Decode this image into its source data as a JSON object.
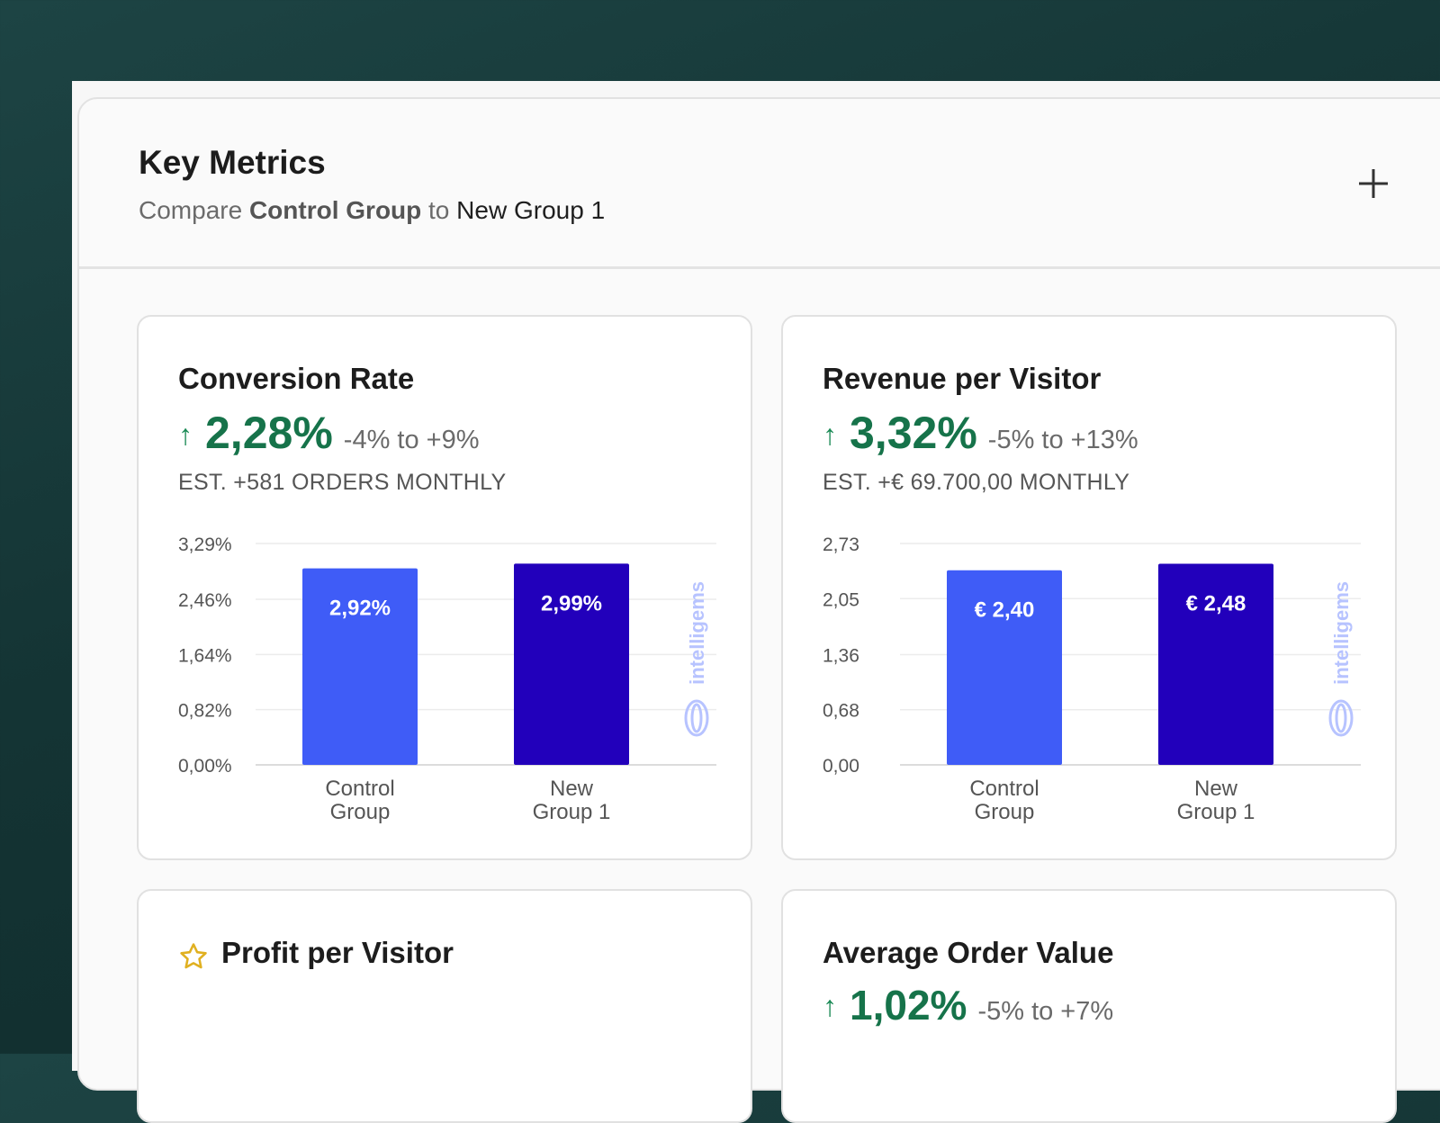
{
  "header": {
    "title": "Key Metrics",
    "subtitle_prefix": "Compare",
    "group_a": "Control Group",
    "connector": "to",
    "group_b": "New Group 1",
    "add_icon": "plus-icon"
  },
  "cards": [
    {
      "title": "Conversion Rate",
      "arrow_icon": "arrow-up-icon",
      "lift": "2,28%",
      "range": "-4% to +9%",
      "estimate": "EST. +581 ORDERS MONTHLY",
      "watermark": "intelligems"
    },
    {
      "title": "Revenue per Visitor",
      "arrow_icon": "arrow-up-icon",
      "lift": "3,32%",
      "range": "-5% to +13%",
      "estimate": "EST. +€ 69.700,00 MONTHLY",
      "watermark": "intelligems"
    },
    {
      "title": "Profit per Visitor",
      "star_icon": "star-icon"
    },
    {
      "title": "Average Order Value",
      "arrow_icon": "arrow-up-icon",
      "lift": "1,02%",
      "range": "-5% to +7%"
    }
  ],
  "chart_data": [
    {
      "type": "bar",
      "categories": [
        "Control Group",
        "New Group 1"
      ],
      "category_lines": [
        [
          "Control",
          "Group"
        ],
        [
          "New",
          "Group 1"
        ]
      ],
      "values": [
        2.92,
        2.99
      ],
      "value_labels": [
        "2,92%",
        "2,99%"
      ],
      "ylim": [
        0,
        3.29
      ],
      "y_ticks": [
        0,
        0.82,
        1.64,
        2.46,
        3.29
      ],
      "y_tick_labels": [
        "0,00%",
        "0,82%",
        "1,64%",
        "2,46%",
        "3,29%"
      ],
      "bar_colors": [
        "#3f5cf7",
        "#2200bb"
      ],
      "grid": true
    },
    {
      "type": "bar",
      "categories": [
        "Control Group",
        "New Group 1"
      ],
      "category_lines": [
        [
          "Control",
          "Group"
        ],
        [
          "New",
          "Group 1"
        ]
      ],
      "values": [
        2.4,
        2.48
      ],
      "value_labels": [
        "€ 2,40",
        "€ 2,48"
      ],
      "ylim": [
        0,
        2.73
      ],
      "y_ticks": [
        0,
        0.68,
        1.36,
        2.05,
        2.73
      ],
      "y_tick_labels": [
        "0,00",
        "0,68",
        "1,36",
        "2,05",
        "2,73"
      ],
      "bar_colors": [
        "#3f5cf7",
        "#2200bb"
      ],
      "grid": true
    }
  ]
}
